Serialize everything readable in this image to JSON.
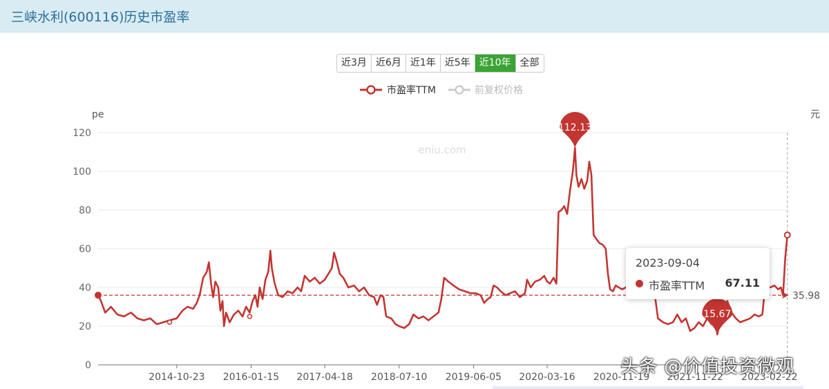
{
  "title": "三峡水利(600116)历史市盈率",
  "range_buttons": [
    {
      "label": "近3月",
      "active": false
    },
    {
      "label": "近6月",
      "active": false
    },
    {
      "label": "近1年",
      "active": false
    },
    {
      "label": "近5年",
      "active": false
    },
    {
      "label": "近10年",
      "active": true
    },
    {
      "label": "全部",
      "active": false
    }
  ],
  "chart_data": {
    "type": "line",
    "ylabel_left": "pe",
    "ylabel_right": "元",
    "ylim": [
      0,
      120
    ],
    "yticks": [
      0,
      20,
      40,
      60,
      80,
      100,
      120
    ],
    "xtick_labels": [
      "2014-10-23",
      "2016-01-15",
      "2017-04-18",
      "2018-07-10",
      "2019-06-05",
      "2020-03-16",
      "2020-11-19",
      "2021-11-22",
      "2023-02-22"
    ],
    "xticks": [
      0.11,
      0.214,
      0.317,
      0.421,
      0.525,
      0.628,
      0.732,
      0.835,
      0.939
    ],
    "watermark": "eniu.com",
    "legend": [
      {
        "name": "市盈率TTM",
        "color": "#c23531",
        "active": true
      },
      {
        "name": "前复权价格",
        "color": "#cccccc",
        "active": false
      }
    ],
    "legend_position": "top-center",
    "series": [
      {
        "name": "市盈率TTM",
        "color": "#c23531",
        "points": [
          [
            0.0,
            36
          ],
          [
            0.004,
            33
          ],
          [
            0.01,
            27
          ],
          [
            0.018,
            30
          ],
          [
            0.027,
            26
          ],
          [
            0.036,
            25
          ],
          [
            0.046,
            27
          ],
          [
            0.055,
            24
          ],
          [
            0.064,
            23
          ],
          [
            0.073,
            24
          ],
          [
            0.082,
            21
          ],
          [
            0.091,
            22
          ],
          [
            0.1,
            23
          ],
          [
            0.11,
            24
          ],
          [
            0.118,
            28
          ],
          [
            0.125,
            30
          ],
          [
            0.133,
            29
          ],
          [
            0.138,
            32
          ],
          [
            0.142,
            36
          ],
          [
            0.147,
            45
          ],
          [
            0.152,
            48
          ],
          [
            0.155,
            53
          ],
          [
            0.158,
            42
          ],
          [
            0.161,
            35
          ],
          [
            0.164,
            43
          ],
          [
            0.168,
            40
          ],
          [
            0.171,
            28
          ],
          [
            0.174,
            33
          ],
          [
            0.176,
            20
          ],
          [
            0.179,
            27
          ],
          [
            0.184,
            22
          ],
          [
            0.19,
            26
          ],
          [
            0.196,
            28
          ],
          [
            0.202,
            25
          ],
          [
            0.207,
            30
          ],
          [
            0.212,
            27
          ],
          [
            0.216,
            33
          ],
          [
            0.22,
            36
          ],
          [
            0.223,
            30
          ],
          [
            0.226,
            40
          ],
          [
            0.23,
            34
          ],
          [
            0.234,
            44
          ],
          [
            0.238,
            48
          ],
          [
            0.241,
            59
          ],
          [
            0.243,
            50
          ],
          [
            0.247,
            42
          ],
          [
            0.252,
            36
          ],
          [
            0.258,
            35
          ],
          [
            0.265,
            38
          ],
          [
            0.272,
            37
          ],
          [
            0.279,
            40
          ],
          [
            0.284,
            38
          ],
          [
            0.289,
            46
          ],
          [
            0.296,
            43
          ],
          [
            0.303,
            45
          ],
          [
            0.31,
            42
          ],
          [
            0.317,
            44
          ],
          [
            0.322,
            47
          ],
          [
            0.327,
            50
          ],
          [
            0.33,
            58
          ],
          [
            0.334,
            53
          ],
          [
            0.338,
            47
          ],
          [
            0.343,
            45
          ],
          [
            0.35,
            40
          ],
          [
            0.358,
            41
          ],
          [
            0.365,
            38
          ],
          [
            0.372,
            40
          ],
          [
            0.379,
            36
          ],
          [
            0.386,
            35
          ],
          [
            0.39,
            31
          ],
          [
            0.395,
            36
          ],
          [
            0.399,
            35
          ],
          [
            0.403,
            25
          ],
          [
            0.41,
            24
          ],
          [
            0.416,
            21
          ],
          [
            0.421,
            20
          ],
          [
            0.428,
            19
          ],
          [
            0.435,
            21
          ],
          [
            0.441,
            26
          ],
          [
            0.448,
            24
          ],
          [
            0.455,
            25
          ],
          [
            0.462,
            23
          ],
          [
            0.469,
            25
          ],
          [
            0.476,
            27
          ],
          [
            0.48,
            34
          ],
          [
            0.484,
            45
          ],
          [
            0.49,
            43
          ],
          [
            0.497,
            41
          ],
          [
            0.505,
            39
          ],
          [
            0.513,
            38
          ],
          [
            0.521,
            37
          ],
          [
            0.528,
            37
          ],
          [
            0.535,
            36
          ],
          [
            0.54,
            32
          ],
          [
            0.545,
            34
          ],
          [
            0.549,
            35
          ],
          [
            0.553,
            41
          ],
          [
            0.558,
            40
          ],
          [
            0.563,
            38
          ],
          [
            0.57,
            36
          ],
          [
            0.576,
            37
          ],
          [
            0.583,
            38
          ],
          [
            0.59,
            35
          ],
          [
            0.597,
            37
          ],
          [
            0.6,
            44
          ],
          [
            0.605,
            40
          ],
          [
            0.611,
            43
          ],
          [
            0.618,
            44
          ],
          [
            0.624,
            46
          ],
          [
            0.628,
            43
          ],
          [
            0.632,
            42
          ],
          [
            0.637,
            45
          ],
          [
            0.641,
            42
          ],
          [
            0.644,
            79
          ],
          [
            0.648,
            80
          ],
          [
            0.652,
            82
          ],
          [
            0.656,
            78
          ],
          [
            0.66,
            90
          ],
          [
            0.664,
            100
          ],
          [
            0.667,
            112.13
          ],
          [
            0.669,
            98
          ],
          [
            0.672,
            92
          ],
          [
            0.676,
            96
          ],
          [
            0.68,
            91
          ],
          [
            0.684,
            95
          ],
          [
            0.687,
            105
          ],
          [
            0.69,
            98
          ],
          [
            0.693,
            67
          ],
          [
            0.697,
            65
          ],
          [
            0.701,
            63
          ],
          [
            0.706,
            62
          ],
          [
            0.71,
            60
          ],
          [
            0.713,
            47
          ],
          [
            0.716,
            39
          ],
          [
            0.72,
            38
          ],
          [
            0.724,
            41
          ],
          [
            0.728,
            40
          ],
          [
            0.733,
            39
          ],
          [
            0.738,
            40
          ],
          [
            0.744,
            41
          ],
          [
            0.75,
            40
          ],
          [
            0.756,
            39
          ],
          [
            0.762,
            40
          ],
          [
            0.768,
            38
          ],
          [
            0.774,
            37
          ],
          [
            0.778,
            38
          ],
          [
            0.783,
            24
          ],
          [
            0.79,
            22
          ],
          [
            0.797,
            21
          ],
          [
            0.804,
            22
          ],
          [
            0.81,
            26
          ],
          [
            0.816,
            22
          ],
          [
            0.822,
            24
          ],
          [
            0.828,
            17.5
          ],
          [
            0.834,
            19
          ],
          [
            0.84,
            22
          ],
          [
            0.846,
            20
          ],
          [
            0.852,
            24
          ],
          [
            0.858,
            21
          ],
          [
            0.862,
            26
          ],
          [
            0.866,
            15.67
          ],
          [
            0.87,
            24
          ],
          [
            0.875,
            29
          ],
          [
            0.88,
            33
          ],
          [
            0.886,
            27
          ],
          [
            0.892,
            24
          ],
          [
            0.898,
            22
          ],
          [
            0.905,
            23
          ],
          [
            0.912,
            24
          ],
          [
            0.918,
            26
          ],
          [
            0.924,
            25
          ],
          [
            0.929,
            26
          ],
          [
            0.933,
            41
          ],
          [
            0.94,
            40
          ],
          [
            0.946,
            41
          ],
          [
            0.951,
            39
          ],
          [
            0.955,
            40
          ],
          [
            0.958,
            35.98
          ],
          [
            0.961,
            55
          ],
          [
            0.964,
            67.11
          ]
        ]
      }
    ],
    "annotations": [
      {
        "type": "max-pin",
        "label": "112.13",
        "x": 0.667,
        "value": 112.13
      },
      {
        "type": "min-pin",
        "label": "15.67",
        "x": 0.866,
        "value": 15.67
      },
      {
        "type": "hline",
        "label": "35.98",
        "value": 35.98
      },
      {
        "type": "start-point",
        "x": 0.0,
        "value": 36
      }
    ]
  },
  "tooltip": {
    "date": "2023-09-04",
    "series_name": "市盈率TTM",
    "value": "67.11"
  },
  "watermark_overlay": "头条 @价值投资微观"
}
